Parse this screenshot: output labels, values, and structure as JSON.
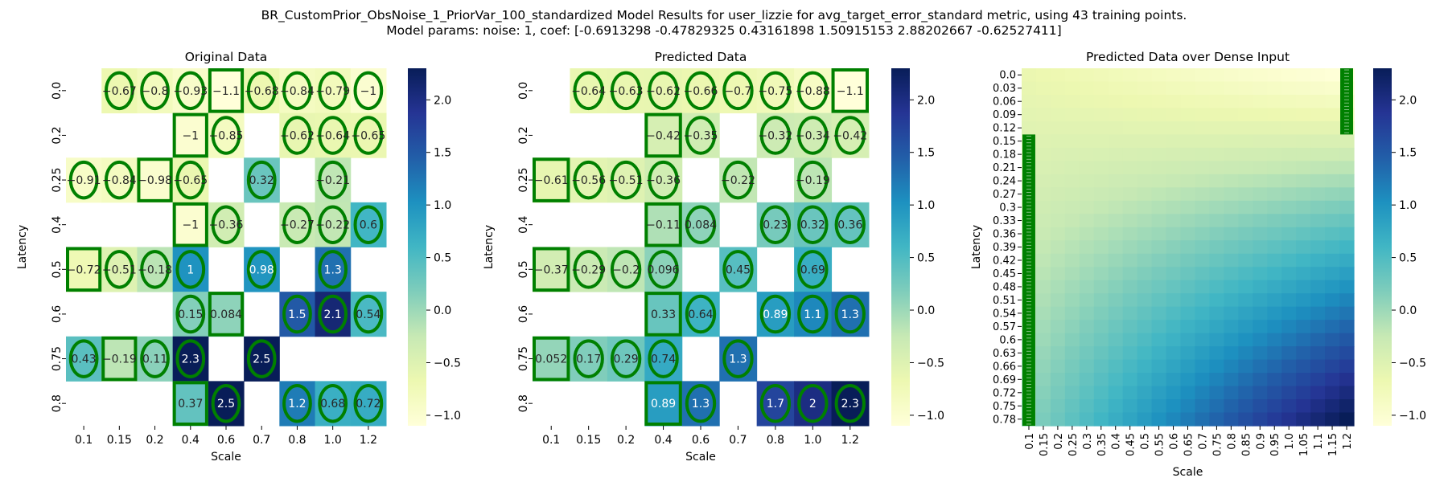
{
  "figure": {
    "title_line1": "BR_CustomPrior_ObsNoise_1_PriorVar_100_standardized Model Results for user_lizzie for avg_target_error_standard metric, using 43 training points.",
    "title_line2": "Model params: noise: 1, coef: [-0.6913298  -0.47829325  0.43161898  1.50915153  2.88202667 -0.62527411]"
  },
  "colormap": {
    "name": "YlGnBu",
    "stops": [
      "#ffffd9",
      "#edf8b1",
      "#c7e9b4",
      "#7fcdbb",
      "#41b6c4",
      "#1d91c0",
      "#225ea8",
      "#253494",
      "#081d58"
    ],
    "vmin": -1.1,
    "vmax": 2.3,
    "marker_color": "#008000"
  },
  "chart_data": [
    {
      "type": "heatmap",
      "title": "Original Data",
      "xlabel": "Scale",
      "ylabel": "Latency",
      "x": [
        "0.1",
        "0.15",
        "0.2",
        "0.4",
        "0.6",
        "0.7",
        "0.8",
        "1.0",
        "1.2"
      ],
      "y": [
        "0.0",
        "0.2",
        "0.25",
        "0.4",
        "0.5",
        "0.6",
        "0.75",
        "0.8"
      ],
      "values": [
        [
          null,
          -0.67,
          -0.8,
          -0.93,
          -1.1,
          -0.68,
          -0.84,
          -0.79,
          -1
        ],
        [
          null,
          null,
          null,
          -1,
          -0.85,
          null,
          -0.62,
          -0.64,
          -0.65
        ],
        [
          -0.91,
          -0.84,
          -0.98,
          -0.65,
          null,
          0.32,
          null,
          -0.21,
          null
        ],
        [
          null,
          null,
          null,
          -1,
          -0.36,
          null,
          -0.27,
          -0.22,
          0.6
        ],
        [
          -0.72,
          -0.51,
          -0.18,
          1,
          null,
          0.98,
          null,
          1.3,
          null
        ],
        [
          null,
          null,
          null,
          0.15,
          0.084,
          null,
          1.5,
          2.1,
          0.54
        ],
        [
          0.43,
          -0.19,
          0.11,
          2.3,
          null,
          2.5,
          null,
          null,
          null
        ],
        [
          null,
          null,
          null,
          0.37,
          2.5,
          null,
          1.2,
          0.68,
          0.72
        ]
      ],
      "markers": [
        [
          null,
          "o",
          "o",
          "o",
          "s",
          "o",
          "o",
          "o",
          "o"
        ],
        [
          null,
          null,
          null,
          "s",
          "o",
          null,
          "o",
          "o",
          "o"
        ],
        [
          "o",
          "o",
          "s",
          "o",
          null,
          "o",
          null,
          "o",
          null
        ],
        [
          null,
          null,
          null,
          "s",
          "o",
          null,
          "o",
          "o",
          "o"
        ],
        [
          "s",
          "o",
          "o",
          "o",
          null,
          "o",
          null,
          "o",
          null
        ],
        [
          null,
          null,
          null,
          "o",
          "s",
          null,
          "o",
          "o",
          "o"
        ],
        [
          "o",
          "s",
          "o",
          "o",
          null,
          "o",
          null,
          null,
          null
        ],
        [
          null,
          null,
          null,
          "s",
          "o",
          null,
          "o",
          "o",
          "o"
        ]
      ],
      "colorbar_ticks": [
        -1.0,
        -0.5,
        0.0,
        0.5,
        1.0,
        1.5,
        2.0
      ]
    },
    {
      "type": "heatmap",
      "title": "Predicted Data",
      "xlabel": "Scale",
      "ylabel": "Latency",
      "x": [
        "0.1",
        "0.15",
        "0.2",
        "0.4",
        "0.6",
        "0.7",
        "0.8",
        "1.0",
        "1.2"
      ],
      "y": [
        "0.0",
        "0.2",
        "0.25",
        "0.4",
        "0.5",
        "0.6",
        "0.75",
        "0.8"
      ],
      "values": [
        [
          null,
          -0.64,
          -0.63,
          -0.62,
          -0.66,
          -0.7,
          -0.75,
          -0.88,
          -1.1
        ],
        [
          null,
          null,
          null,
          -0.42,
          -0.35,
          null,
          -0.32,
          -0.34,
          -0.42
        ],
        [
          -0.61,
          -0.56,
          -0.51,
          -0.36,
          null,
          -0.22,
          null,
          -0.19,
          null
        ],
        [
          null,
          null,
          null,
          -0.11,
          0.084,
          null,
          0.23,
          0.32,
          0.36
        ],
        [
          -0.37,
          -0.29,
          -0.2,
          0.096,
          null,
          0.45,
          null,
          0.69,
          null
        ],
        [
          null,
          null,
          null,
          0.33,
          0.64,
          null,
          0.89,
          1.1,
          1.3
        ],
        [
          0.052,
          0.17,
          0.29,
          0.74,
          null,
          1.3,
          null,
          null,
          null
        ],
        [
          null,
          null,
          null,
          0.89,
          1.3,
          null,
          1.7,
          2,
          2.3
        ]
      ],
      "markers": [
        [
          null,
          "o",
          "o",
          "o",
          "o",
          "o",
          "o",
          "o",
          "s"
        ],
        [
          null,
          null,
          null,
          "s",
          "o",
          null,
          "o",
          "o",
          "o"
        ],
        [
          "s",
          "o",
          "o",
          "o",
          null,
          "o",
          null,
          "o",
          null
        ],
        [
          null,
          null,
          null,
          "s",
          "o",
          null,
          "o",
          "o",
          "o"
        ],
        [
          "s",
          "o",
          "o",
          "o",
          null,
          "o",
          null,
          "o",
          null
        ],
        [
          null,
          null,
          null,
          "s",
          "o",
          null,
          "o",
          "o",
          "o"
        ],
        [
          "s",
          "o",
          "o",
          "o",
          null,
          "o",
          null,
          null,
          null
        ],
        [
          null,
          null,
          null,
          "s",
          "o",
          null,
          "o",
          "o",
          "o"
        ]
      ],
      "colorbar_ticks": [
        -1.0,
        -0.5,
        0.0,
        0.5,
        1.0,
        1.5,
        2.0
      ]
    },
    {
      "type": "heatmap",
      "title": "Predicted Data over Dense Input",
      "xlabel": "Scale",
      "ylabel": "Latency",
      "x": [
        "0.1",
        "0.15",
        "0.2",
        "0.25",
        "0.3",
        "0.35",
        "0.4",
        "0.45",
        "0.5",
        "0.55",
        "0.6",
        "0.65",
        "0.7",
        "0.75",
        "0.8",
        "0.85",
        "0.9",
        "0.95",
        "1.0",
        "1.05",
        "1.1",
        "1.15",
        "1.2"
      ],
      "y": [
        "0.0",
        "0.03",
        "0.06",
        "0.09",
        "0.12",
        "0.15",
        "0.18",
        "0.21",
        "0.24",
        "0.27",
        "0.3",
        "0.33",
        "0.36",
        "0.39",
        "0.42",
        "0.45",
        "0.48",
        "0.51",
        "0.54",
        "0.57",
        "0.6",
        "0.63",
        "0.66",
        "0.69",
        "0.72",
        "0.75",
        "0.78"
      ],
      "corner_values": {
        "top_left": -0.65,
        "top_right": -1.1,
        "bottom_left": 0.1,
        "bottom_right": 2.3
      },
      "marker_strips": [
        {
          "side": "left",
          "from_latency": "0.15",
          "to_latency": "0.78"
        },
        {
          "side": "right",
          "from_latency": "0.0",
          "to_latency": "0.12"
        }
      ],
      "colorbar_ticks": [
        -1.0,
        -0.5,
        0.0,
        0.5,
        1.0,
        1.5,
        2.0
      ]
    }
  ]
}
